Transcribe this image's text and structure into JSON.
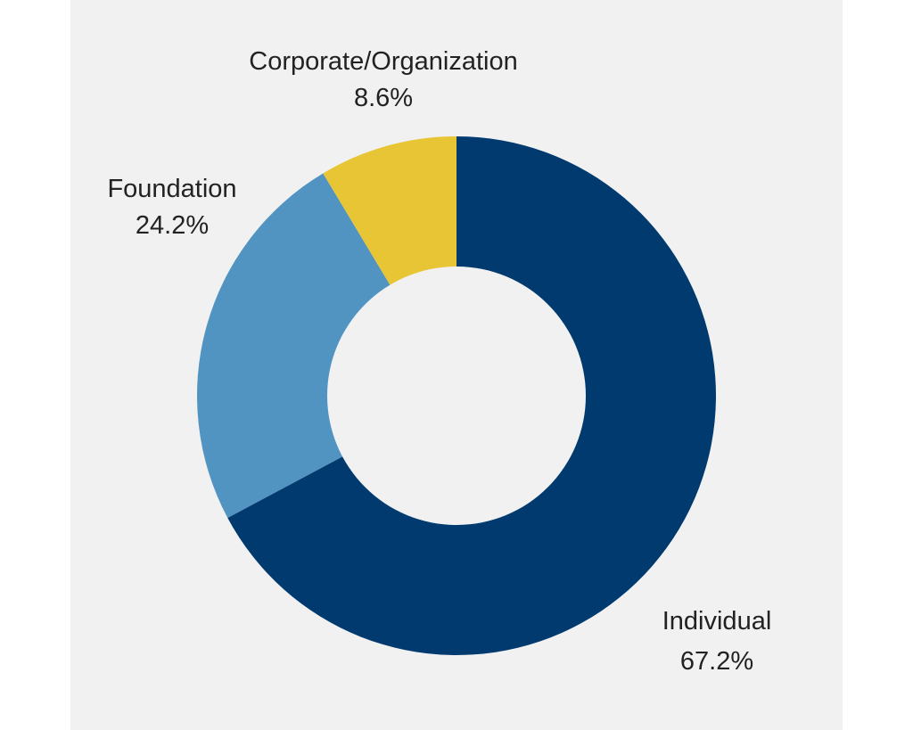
{
  "chart_data": {
    "type": "pie",
    "variant": "donut",
    "categories": [
      "Individual",
      "Foundation",
      "Corporate/Organization"
    ],
    "values": [
      67.2,
      24.2,
      8.6
    ],
    "value_labels": [
      "67.2%",
      "24.2%",
      "8.6%"
    ],
    "colors": [
      "#003a6e",
      "#5294c1",
      "#e7c535"
    ],
    "title": "",
    "legend": "none"
  },
  "colors": {
    "background": "#f1f1f2"
  }
}
